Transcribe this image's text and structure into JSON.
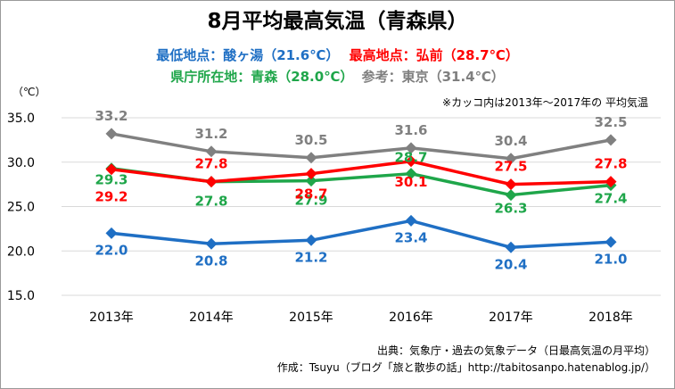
{
  "header": {
    "title": "8月平均最高気温（青森県）",
    "min_label": "最低地点：酸ヶ湯（21.6℃）",
    "max_label": "最高地点：弘前（28.7℃）",
    "pref_label": "県庁所在地：青森（28.0℃）",
    "ref_label": "参考：東京（31.4℃）"
  },
  "unit_label": "（℃）",
  "note": "※カッコ内は2013年～2017年の 平均気温",
  "footer": {
    "source": "出典：気象庁・過去の気象データ（日最高気温の月平均）",
    "credit": "作成：Tsuyu（ブログ「旅と散歩の話」http://tabitosanpo.hatenablog.jp/）"
  },
  "colors": {
    "tokyo": "#808080",
    "hirosaki": "#ff0000",
    "aomori": "#1fa64a",
    "sukayu": "#1f6fc4"
  },
  "chart_data": {
    "type": "line",
    "categories": [
      "2013年",
      "2014年",
      "2015年",
      "2016年",
      "2017年",
      "2018年"
    ],
    "ylim": [
      15.0,
      35.0
    ],
    "yticks": [
      "15.0",
      "20.0",
      "25.0",
      "30.0",
      "35.0"
    ],
    "grid": true,
    "series": [
      {
        "name": "東京",
        "color": "#808080",
        "values": [
          33.2,
          31.2,
          30.5,
          31.6,
          30.4,
          32.5
        ]
      },
      {
        "name": "弘前",
        "color": "#ff0000",
        "values": [
          29.2,
          27.8,
          28.7,
          30.1,
          27.5,
          27.8
        ]
      },
      {
        "name": "青森",
        "color": "#1fa64a",
        "values": [
          29.3,
          27.8,
          27.9,
          28.7,
          26.3,
          27.4
        ]
      },
      {
        "name": "酸ヶ湯",
        "color": "#1f6fc4",
        "values": [
          22.0,
          20.8,
          21.2,
          23.4,
          20.4,
          21.0
        ]
      }
    ]
  }
}
